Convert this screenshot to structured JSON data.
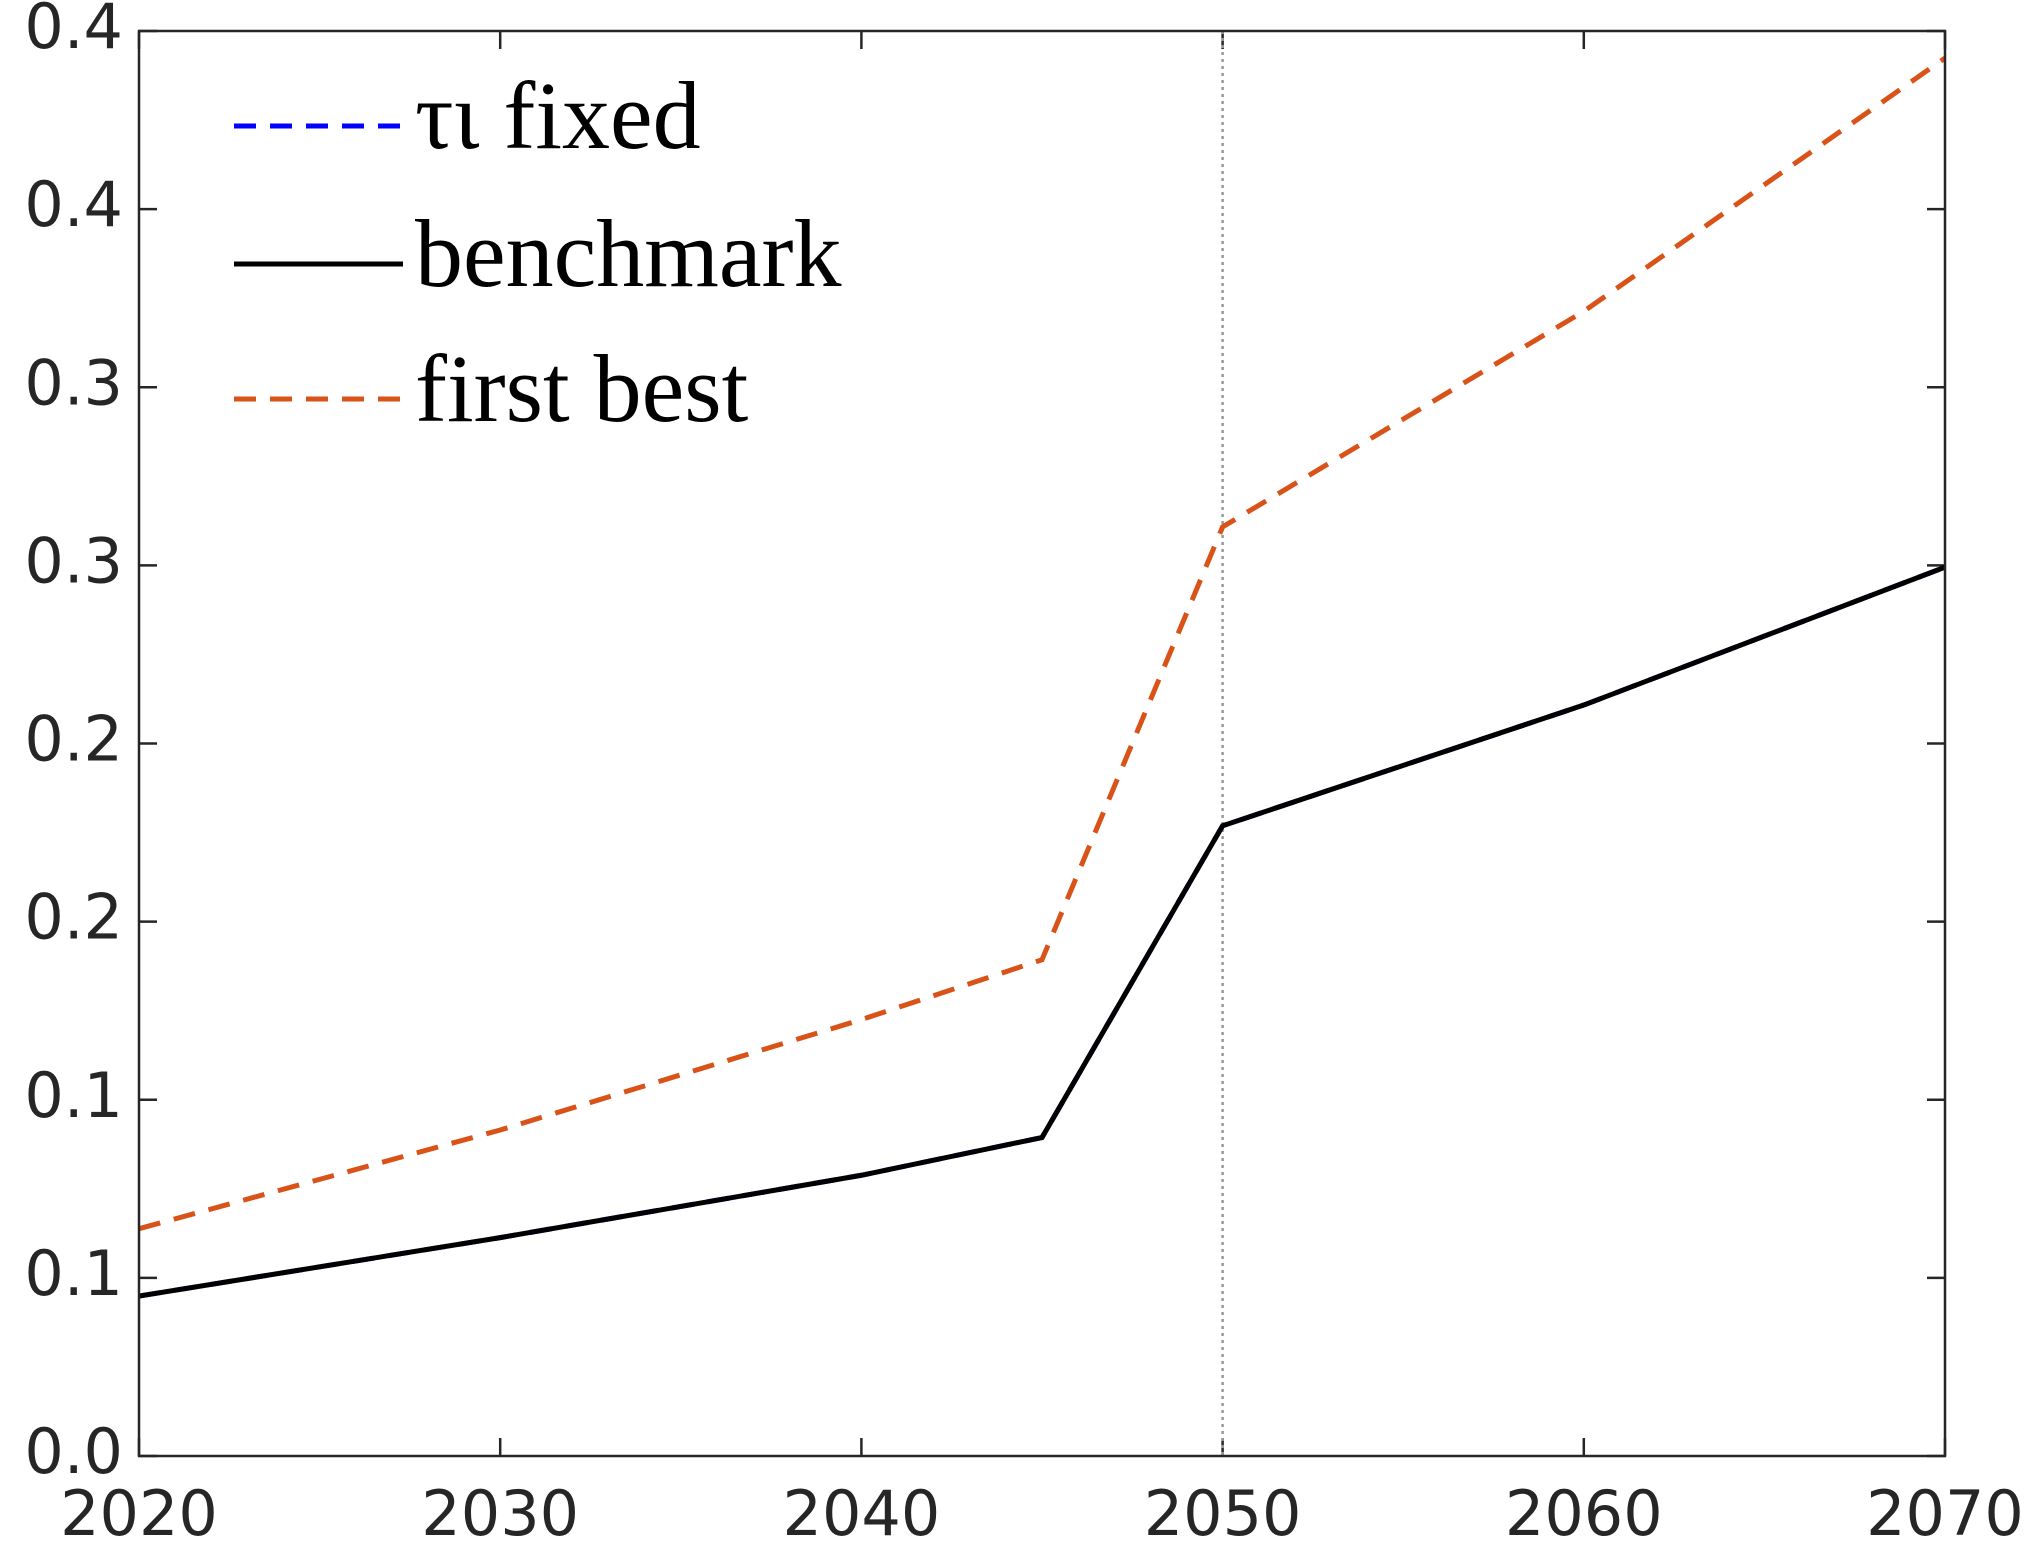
{
  "chart_data": {
    "type": "line",
    "x": [
      2020,
      2030,
      2040,
      2045,
      2050,
      2060,
      2070
    ],
    "series": [
      {
        "name": "τι fixed",
        "color": "#0000ff",
        "dash": true,
        "values": [
          0.0449,
          0.0613,
          0.0788,
          0.0894,
          0.1769,
          0.2108,
          0.2495
        ]
      },
      {
        "name": "benchmark",
        "color": "#000000",
        "dash": false,
        "values": [
          0.0449,
          0.0613,
          0.0788,
          0.0894,
          0.1769,
          0.2108,
          0.2495
        ]
      },
      {
        "name": "first best",
        "color": "#d95319",
        "dash": true,
        "values": [
          0.0638,
          0.0915,
          0.1225,
          0.1393,
          0.2608,
          0.3213,
          0.3924
        ]
      }
    ],
    "xlim": [
      2020,
      2070
    ],
    "xticks": [
      2020,
      2030,
      2040,
      2050,
      2060,
      2070
    ],
    "ylim": [
      0,
      0.4
    ],
    "yticks": [
      {
        "value": 0,
        "label": "0.0"
      },
      {
        "value": 0.05,
        "label": "0.1"
      },
      {
        "value": 0.1,
        "label": "0.1"
      },
      {
        "value": 0.15,
        "label": "0.2"
      },
      {
        "value": 0.2,
        "label": "0.2"
      },
      {
        "value": 0.25,
        "label": "0.3"
      },
      {
        "value": 0.3,
        "label": "0.3"
      },
      {
        "value": 0.35,
        "label": "0.4"
      },
      {
        "value": 0.4,
        "label": "0.4"
      }
    ],
    "vline": 2050,
    "legend": "upper-left"
  }
}
